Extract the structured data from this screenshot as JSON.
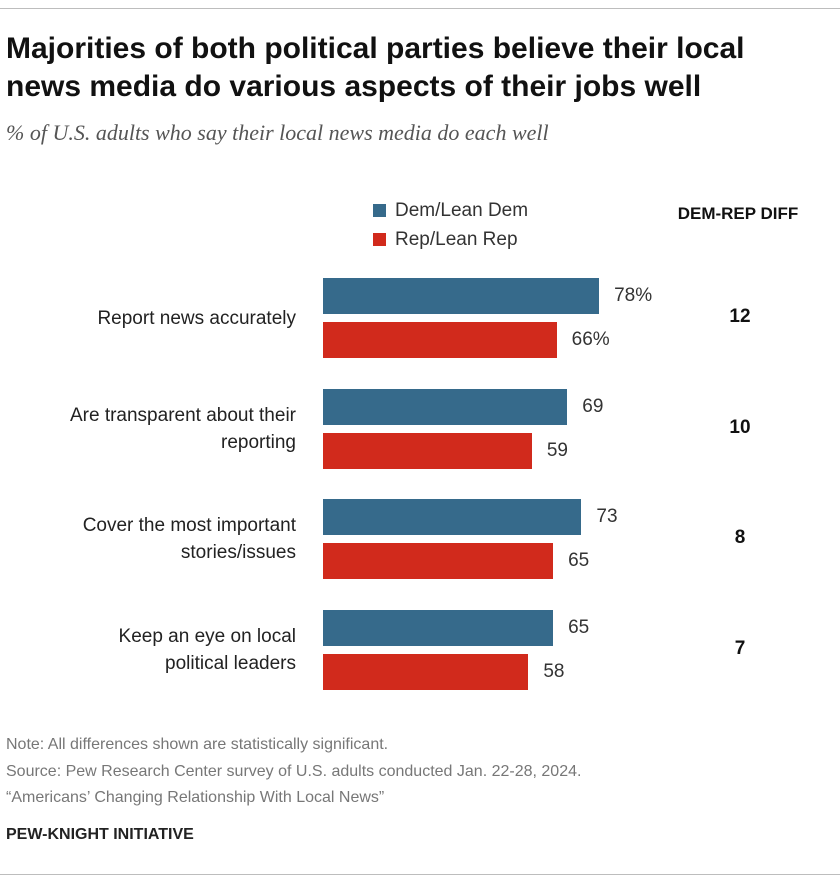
{
  "title": "Majorities of both political parties believe their local news media do various aspects of their jobs well",
  "subtitle": "% of U.S. adults who say their local news media do each well",
  "diff_header": "DEM-REP DIFF",
  "notes": {
    "note": "Note: All differences shown are statistically significant.",
    "source": "Source: Pew Research Center survey of U.S. adults conducted Jan. 22-28, 2024.",
    "report": "“Americans’ Changing Relationship With Local News”"
  },
  "brand": "PEW-KNIGHT INITIATIVE",
  "colors": {
    "dem": "#366a8b",
    "rep": "#d12a1c"
  },
  "chart_data": {
    "type": "bar",
    "orientation": "horizontal",
    "grouped": true,
    "categories": [
      "Report news accurately",
      "Are transparent about their reporting",
      "Cover the most important stories/issues",
      "Keep an eye on local political leaders"
    ],
    "series": [
      {
        "name": "Dem/Lean Dem",
        "values": [
          78,
          69,
          73,
          65
        ],
        "labels": [
          "78%",
          "69",
          "73",
          "65"
        ]
      },
      {
        "name": "Rep/Lean Rep",
        "values": [
          66,
          59,
          65,
          58
        ],
        "labels": [
          "66%",
          "59",
          "65",
          "58"
        ]
      }
    ],
    "diff": [
      "12",
      "10",
      "8",
      "7"
    ],
    "xlim": [
      0,
      100
    ],
    "legend": "top",
    "grid": false
  }
}
